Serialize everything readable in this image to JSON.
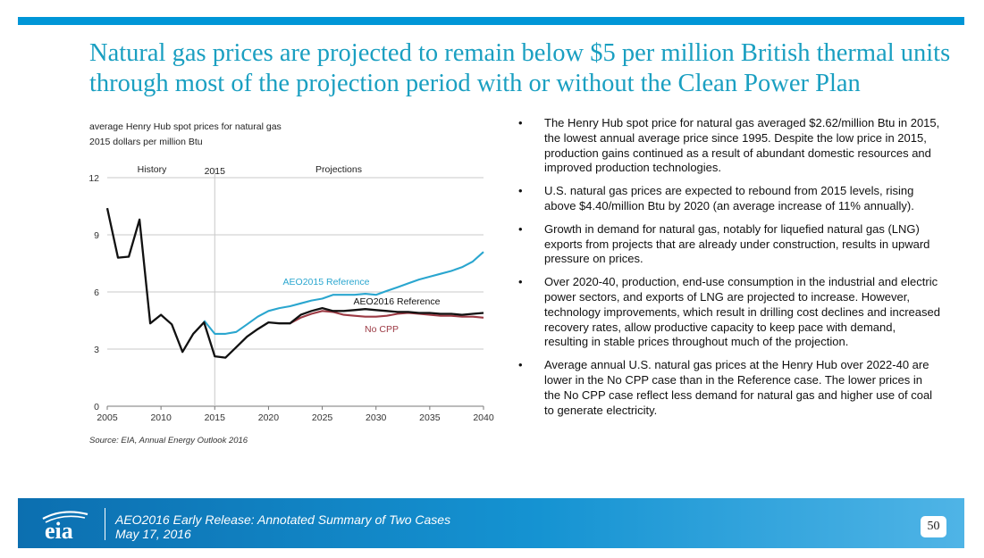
{
  "slide": {
    "title": "Natural gas prices are projected to remain below $5 per million British thermal units through most of the projection period with or without the Clean Power Plan",
    "page_number": "50",
    "accent_color": "#0096d7"
  },
  "footer": {
    "logo_text": "eia",
    "line1": "AEO2016 Early Release: Annotated Summary of Two Cases",
    "line2": "May 17, 2016"
  },
  "bullets": [
    "The Henry Hub spot price for natural gas averaged $2.62/million Btu in 2015, the lowest annual average price since 1995.  Despite the low price in 2015, production gains continued as a result of abundant domestic resources and improved production technologies.",
    "U.S. natural gas prices are expected to rebound from 2015 levels, rising above $4.40/million Btu by 2020 (an average increase of 11% annually).",
    "Growth in demand for natural gas, notably for liquefied natural gas (LNG) exports from projects that are already under construction, results in upward pressure on prices.",
    "Over 2020-40, production, end-use consumption in the industrial and electric power sectors, and exports of LNG are projected to increase. However, technology improvements, which result in drilling cost declines and increased recovery rates, allow productive capacity to keep pace with demand, resulting in stable prices throughout much of the projection.",
    "Average annual U.S. natural gas prices at the Henry Hub over 2022-40 are lower in the No CPP case than in the Reference case. The lower prices in the No CPP case reflect less demand for natural gas and higher use of coal to generate electricity."
  ],
  "chart_data": {
    "type": "line",
    "title": "average Henry Hub spot prices for natural gas",
    "subtitle": "2015 dollars per million Btu",
    "source": "Source:  EIA, Annual Energy Outlook 2016",
    "xlim": [
      2005,
      2040
    ],
    "ylim": [
      0,
      12
    ],
    "x_ticks": [
      2005,
      2010,
      2015,
      2020,
      2025,
      2030,
      2035,
      2040
    ],
    "y_ticks": [
      0,
      3,
      6,
      9,
      12
    ],
    "grid": "horizontal",
    "annotations": {
      "history": "History",
      "divider_year": "2015",
      "divider_x": 2015,
      "projections": "Projections"
    },
    "series": [
      {
        "name": "AEO2015 Reference",
        "color": "#2aa6cf",
        "x": [
          2014,
          2015,
          2016,
          2017,
          2018,
          2019,
          2020,
          2021,
          2022,
          2023,
          2024,
          2025,
          2026,
          2027,
          2028,
          2029,
          2030,
          2031,
          2032,
          2033,
          2034,
          2035,
          2036,
          2037,
          2038,
          2039,
          2040
        ],
        "values": [
          4.5,
          3.8,
          3.8,
          3.9,
          4.3,
          4.7,
          5.0,
          5.15,
          5.25,
          5.4,
          5.55,
          5.65,
          5.85,
          5.85,
          5.85,
          5.9,
          5.85,
          6.05,
          6.25,
          6.45,
          6.65,
          6.8,
          6.95,
          7.1,
          7.3,
          7.6,
          8.1
        ]
      },
      {
        "name": "AEO2016 Reference",
        "color": "#111111",
        "x": [
          2005,
          2006,
          2007,
          2008,
          2009,
          2010,
          2011,
          2012,
          2013,
          2014,
          2015,
          2016,
          2017,
          2018,
          2019,
          2020,
          2021,
          2022,
          2023,
          2024,
          2025,
          2026,
          2027,
          2028,
          2029,
          2030,
          2031,
          2032,
          2033,
          2034,
          2035,
          2036,
          2037,
          2038,
          2039,
          2040
        ],
        "values": [
          10.4,
          7.8,
          7.85,
          9.8,
          4.35,
          4.8,
          4.3,
          2.85,
          3.8,
          4.4,
          2.62,
          2.55,
          3.1,
          3.65,
          4.05,
          4.4,
          4.35,
          4.35,
          4.8,
          5.0,
          5.15,
          5.0,
          5.0,
          5.05,
          5.1,
          5.05,
          5.0,
          4.95,
          4.95,
          4.9,
          4.9,
          4.85,
          4.85,
          4.8,
          4.85,
          4.9
        ]
      },
      {
        "name": "No CPP",
        "color": "#9c3a44",
        "x": [
          2022,
          2023,
          2024,
          2025,
          2026,
          2027,
          2028,
          2029,
          2030,
          2031,
          2032,
          2033,
          2034,
          2035,
          2036,
          2037,
          2038,
          2039,
          2040
        ],
        "values": [
          4.35,
          4.65,
          4.85,
          5.0,
          4.95,
          4.8,
          4.75,
          4.7,
          4.7,
          4.75,
          4.85,
          4.9,
          4.85,
          4.8,
          4.75,
          4.75,
          4.7,
          4.7,
          4.65
        ]
      }
    ]
  }
}
